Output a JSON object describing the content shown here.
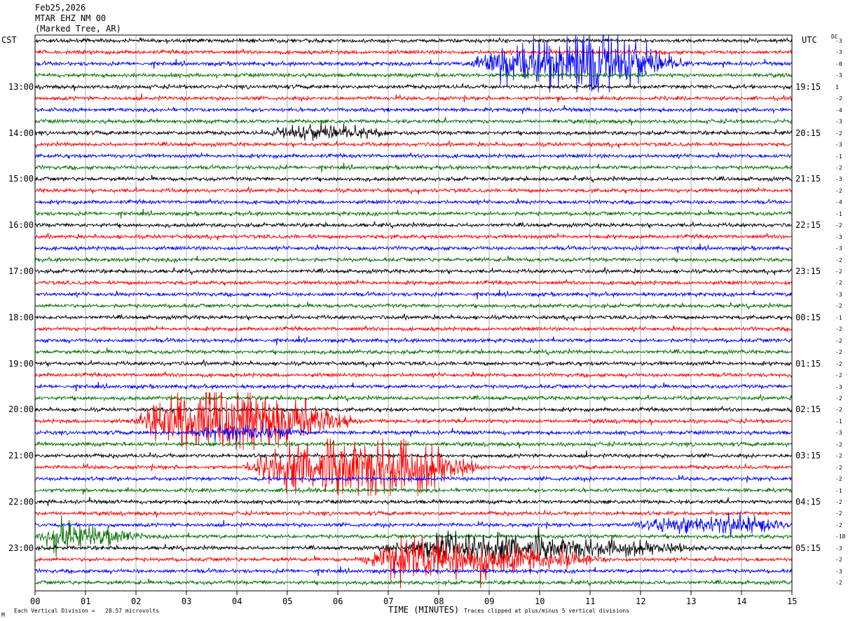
{
  "header": {
    "date": "Feb25,2026",
    "station": "MTAR EHZ NM 00",
    "location": "(Marked Tree, AR)"
  },
  "left_axis_title": "CST",
  "right_axis_title": "UTC",
  "dc_label": "DC",
  "footer": {
    "scale": "Each Vertical Division =   28.57 microvolts",
    "xlabel": "TIME (MINUTES)",
    "clip_note": "Traces clipped at plus/minus 5 vertical divisions",
    "corner_mark": "M"
  },
  "chart_data": {
    "type": "line",
    "title": "MTAR EHZ NM 00",
    "xlabel": "TIME (MINUTES)",
    "xlim": [
      0,
      15
    ],
    "x_ticks": [
      "00",
      "01",
      "02",
      "03",
      "04",
      "05",
      "06",
      "07",
      "08",
      "09",
      "10",
      "11",
      "12",
      "13",
      "14",
      "15"
    ],
    "grid": "vertical lines every minute",
    "trace_count": 48,
    "minutes_per_trace": 15,
    "trace_colors": [
      "#000000",
      "#ff0000",
      "#0000ff",
      "#007000"
    ],
    "left_hour_labels": [
      {
        "trace": 4,
        "text": "13:00"
      },
      {
        "trace": 8,
        "text": "14:00"
      },
      {
        "trace": 12,
        "text": "15:00"
      },
      {
        "trace": 16,
        "text": "16:00"
      },
      {
        "trace": 20,
        "text": "17:00"
      },
      {
        "trace": 24,
        "text": "18:00"
      },
      {
        "trace": 28,
        "text": "19:00"
      },
      {
        "trace": 32,
        "text": "20:00"
      },
      {
        "trace": 36,
        "text": "21:00"
      },
      {
        "trace": 40,
        "text": "22:00"
      },
      {
        "trace": 44,
        "text": "23:00"
      }
    ],
    "right_hour_labels": [
      {
        "trace": 4,
        "text": "19:15"
      },
      {
        "trace": 8,
        "text": "20:15"
      },
      {
        "trace": 12,
        "text": "21:15"
      },
      {
        "trace": 16,
        "text": "22:15"
      },
      {
        "trace": 20,
        "text": "23:15"
      },
      {
        "trace": 24,
        "text": "00:15"
      },
      {
        "trace": 28,
        "text": "01:15"
      },
      {
        "trace": 32,
        "text": "02:15"
      },
      {
        "trace": 36,
        "text": "03:15"
      },
      {
        "trace": 40,
        "text": "04:15"
      },
      {
        "trace": 44,
        "text": "05:15"
      }
    ],
    "dc_offsets": [
      "-3",
      "-3",
      "-0",
      "-3",
      "1",
      "-2",
      "-4",
      "-3",
      "-2",
      "-3",
      "-1",
      "-2",
      "-3",
      "-2",
      "-4",
      "-1",
      "-2",
      "-3",
      "-3",
      "-2",
      "-2",
      "-2",
      "-3",
      "-2",
      "-1",
      "-2",
      "-2",
      "-2",
      "-2",
      "-2",
      "-3",
      "-2",
      "-2",
      "-1",
      "-3",
      "-2",
      "-2",
      "-2",
      "-2",
      "-1",
      "-2",
      "-2",
      "-2",
      "-18",
      "-3",
      "-2",
      "-3",
      "-2"
    ],
    "events": [
      {
        "trace": 2,
        "start_min": 8.6,
        "end_min": 13.0,
        "level": 5.5,
        "peak_min": 11.4
      },
      {
        "trace": 8,
        "start_min": 4.6,
        "end_min": 7.2,
        "level": 1.2,
        "peak_min": 5.5
      },
      {
        "trace": 33,
        "start_min": 1.9,
        "end_min": 6.5,
        "level": 6.0,
        "peak_min": 4.0
      },
      {
        "trace": 34,
        "start_min": 3.0,
        "end_min": 5.5,
        "level": 1.2,
        "peak_min": 4.0
      },
      {
        "trace": 37,
        "start_min": 4.1,
        "end_min": 9.0,
        "level": 6.0,
        "peak_min": 7.0
      },
      {
        "trace": 42,
        "start_min": 11.8,
        "end_min": 15.0,
        "level": 2.0,
        "peak_min": 14.5
      },
      {
        "trace": 43,
        "start_min": 0.0,
        "end_min": 2.2,
        "level": 2.2,
        "peak_min": 0.3
      },
      {
        "trace": 44,
        "start_min": 6.8,
        "end_min": 13.5,
        "level": 2.4,
        "peak_min": 8.5
      },
      {
        "trace": 45,
        "start_min": 6.3,
        "end_min": 11.5,
        "level": 3.2,
        "peak_min": 7.8
      }
    ]
  }
}
